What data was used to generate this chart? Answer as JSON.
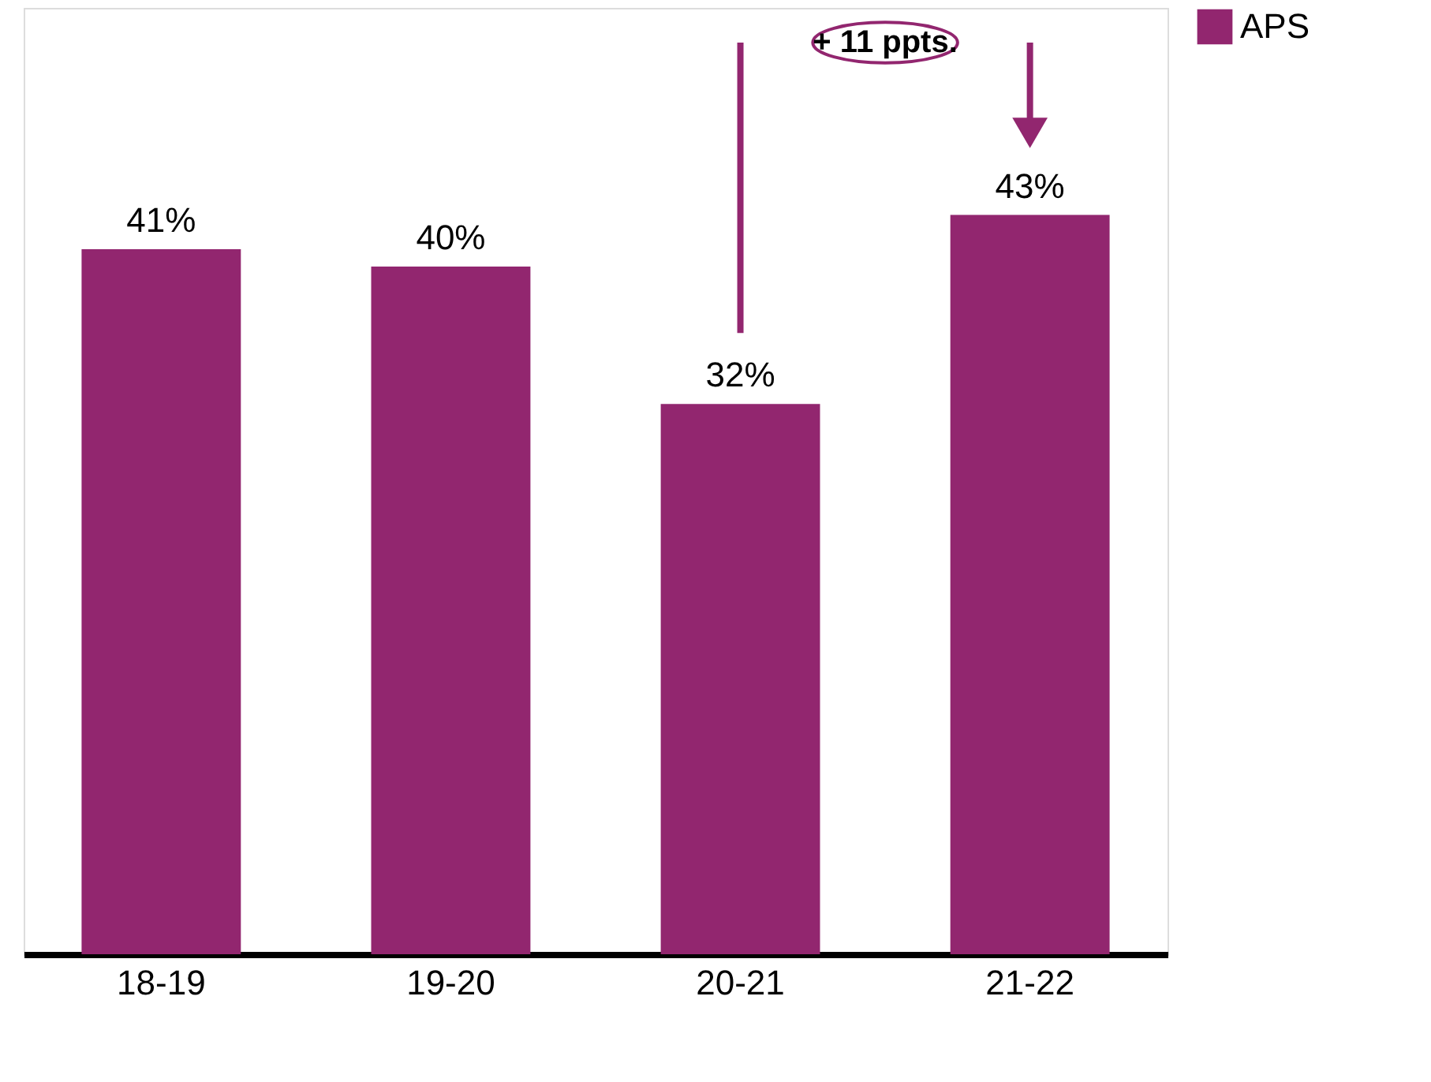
{
  "chart_data": {
    "type": "bar",
    "categories": [
      "18-19",
      "19-20",
      "20-21",
      "21-22"
    ],
    "series": [
      {
        "name": "APS",
        "color": "#92266f",
        "values": [
          41,
          40,
          32,
          43
        ],
        "value_labels": [
          "41%",
          "40%",
          "32%",
          "43%"
        ]
      }
    ],
    "annotations": [
      "+ 11 ppts."
    ],
    "legend": "top right",
    "grid": false
  }
}
